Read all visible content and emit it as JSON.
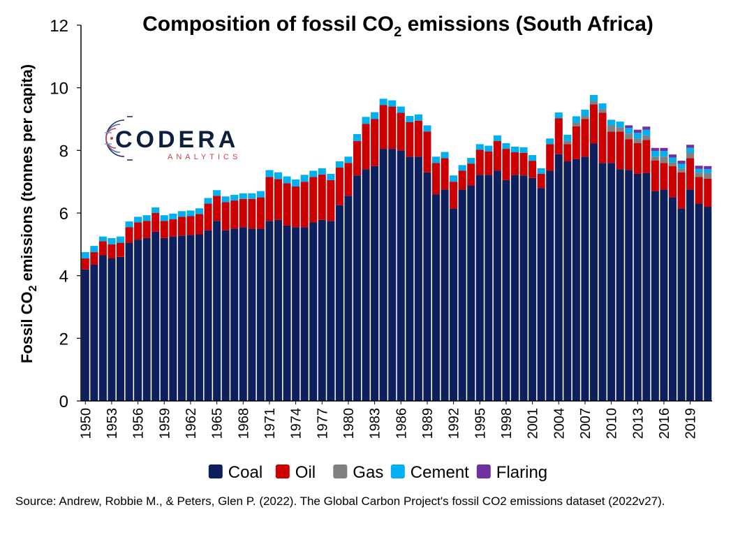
{
  "colors": {
    "Coal": "#0d1f5c",
    "Oil": "#cc0000",
    "Gas": "#808080",
    "Cement": "#00b0f0",
    "Flaring": "#7030a0"
  },
  "logo": {
    "name": "CODERA",
    "sub": "ANALYTICS"
  },
  "source": "Source: Andrew, Robbie M., & Peters, Glen P. (2022). The Global Carbon Project's fossil CO2 emissions dataset (2022v27).",
  "chart_data": {
    "type": "bar",
    "stacked": true,
    "title": {
      "pre": "Composition of fossil CO",
      "sub": "2",
      "post": " emissions (South Africa)"
    },
    "ylabel": {
      "pre": "Fossil CO",
      "sub": "2",
      "post": " emissions (tonnes  per capita)"
    },
    "xlabel": "",
    "ylim": [
      0,
      12
    ],
    "yticks": [
      0,
      2,
      4,
      6,
      8,
      10,
      12
    ],
    "grid": false,
    "legend_position": "bottom",
    "xtick_labels": [
      "1950",
      "1953",
      "1956",
      "1959",
      "1962",
      "1965",
      "1968",
      "1971",
      "1974",
      "1977",
      "1980",
      "1983",
      "1986",
      "1989",
      "1992",
      "1995",
      "1998",
      "2001",
      "2004",
      "2007",
      "2010",
      "2013",
      "2016",
      "2019"
    ],
    "categories": [
      "1950",
      "1951",
      "1952",
      "1953",
      "1954",
      "1955",
      "1956",
      "1957",
      "1958",
      "1959",
      "1960",
      "1961",
      "1962",
      "1963",
      "1964",
      "1965",
      "1966",
      "1967",
      "1968",
      "1969",
      "1970",
      "1971",
      "1972",
      "1973",
      "1974",
      "1975",
      "1976",
      "1977",
      "1978",
      "1979",
      "1980",
      "1981",
      "1982",
      "1983",
      "1984",
      "1985",
      "1986",
      "1987",
      "1988",
      "1989",
      "1990",
      "1991",
      "1992",
      "1993",
      "1994",
      "1995",
      "1996",
      "1997",
      "1998",
      "1999",
      "2000",
      "2001",
      "2002",
      "2003",
      "2004",
      "2005",
      "2006",
      "2007",
      "2008",
      "2009",
      "2010",
      "2011",
      "2012",
      "2013",
      "2014",
      "2015",
      "2016",
      "2017",
      "2018",
      "2019",
      "2020",
      "2021"
    ],
    "series": [
      {
        "name": "Coal",
        "values": [
          4.2,
          4.35,
          4.65,
          4.55,
          4.6,
          5.05,
          5.15,
          5.2,
          5.4,
          5.2,
          5.25,
          5.28,
          5.3,
          5.32,
          5.45,
          5.75,
          5.45,
          5.5,
          5.55,
          5.5,
          5.5,
          5.75,
          5.78,
          5.6,
          5.55,
          5.55,
          5.7,
          5.78,
          5.75,
          6.25,
          6.55,
          7.2,
          7.4,
          7.5,
          8.05,
          8.05,
          8.0,
          7.8,
          7.8,
          7.3,
          6.6,
          6.75,
          6.15,
          6.75,
          6.88,
          7.22,
          7.22,
          7.35,
          7.05,
          7.22,
          7.2,
          7.12,
          6.8,
          7.35,
          7.88,
          7.65,
          7.72,
          7.8,
          8.22,
          7.6,
          7.6,
          7.4,
          7.38,
          7.25,
          7.28,
          6.7,
          6.75,
          6.5,
          6.15,
          6.75,
          6.3,
          6.2
        ]
      },
      {
        "name": "Oil",
        "values": [
          0.35,
          0.4,
          0.45,
          0.45,
          0.45,
          0.5,
          0.55,
          0.55,
          0.6,
          0.55,
          0.55,
          0.6,
          0.6,
          0.65,
          0.85,
          0.8,
          0.9,
          0.9,
          0.9,
          0.95,
          1.0,
          1.4,
          1.3,
          1.35,
          1.3,
          1.45,
          1.45,
          1.45,
          1.3,
          1.2,
          1.05,
          1.1,
          1.45,
          1.5,
          1.4,
          1.35,
          1.2,
          1.1,
          1.15,
          1.3,
          1.0,
          1.0,
          0.85,
          0.6,
          0.7,
          0.8,
          0.75,
          0.95,
          1.0,
          0.72,
          0.72,
          0.55,
          0.45,
          0.85,
          1.15,
          0.55,
          1.05,
          1.2,
          1.25,
          1.6,
          1.0,
          1.2,
          0.98,
          0.98,
          1.05,
          0.98,
          0.85,
          1.0,
          1.15,
          1.0,
          0.85,
          0.9
        ]
      },
      {
        "name": "Gas",
        "values": [
          0,
          0,
          0,
          0,
          0,
          0,
          0,
          0,
          0,
          0,
          0,
          0,
          0,
          0,
          0,
          0,
          0,
          0,
          0,
          0,
          0,
          0,
          0,
          0,
          0,
          0,
          0,
          0,
          0,
          0,
          0,
          0,
          0,
          0,
          0,
          0,
          0,
          0,
          0,
          0,
          0,
          0,
          0,
          0,
          0,
          0,
          0,
          0,
          0,
          0,
          0,
          0,
          0,
          0,
          0,
          0.1,
          0.12,
          0.1,
          0.1,
          0.12,
          0.2,
          0.14,
          0.18,
          0.15,
          0.15,
          0.12,
          0.2,
          0.12,
          0.12,
          0.18,
          0.14,
          0.18
        ]
      },
      {
        "name": "Cement",
        "values": [
          0.2,
          0.2,
          0.15,
          0.2,
          0.2,
          0.18,
          0.18,
          0.18,
          0.18,
          0.18,
          0.18,
          0.18,
          0.18,
          0.18,
          0.18,
          0.18,
          0.18,
          0.18,
          0.18,
          0.18,
          0.2,
          0.22,
          0.22,
          0.22,
          0.22,
          0.22,
          0.2,
          0.2,
          0.2,
          0.2,
          0.2,
          0.22,
          0.22,
          0.22,
          0.2,
          0.2,
          0.2,
          0.2,
          0.2,
          0.2,
          0.2,
          0.2,
          0.2,
          0.18,
          0.18,
          0.18,
          0.18,
          0.18,
          0.18,
          0.18,
          0.18,
          0.18,
          0.18,
          0.18,
          0.18,
          0.2,
          0.2,
          0.2,
          0.2,
          0.18,
          0.18,
          0.18,
          0.18,
          0.18,
          0.18,
          0.18,
          0.18,
          0.15,
          0.15,
          0.15,
          0.12,
          0.12
        ]
      },
      {
        "name": "Flaring",
        "values": [
          0,
          0,
          0,
          0,
          0,
          0,
          0,
          0,
          0,
          0,
          0,
          0,
          0,
          0,
          0,
          0,
          0,
          0,
          0,
          0,
          0,
          0,
          0,
          0,
          0,
          0,
          0,
          0,
          0,
          0,
          0,
          0,
          0,
          0,
          0,
          0,
          0,
          0,
          0,
          0,
          0,
          0,
          0,
          0,
          0,
          0,
          0,
          0,
          0,
          0,
          0,
          0,
          0,
          0,
          0,
          0,
          0,
          0,
          0,
          0,
          0,
          0,
          0.08,
          0.1,
          0.1,
          0.1,
          0.1,
          0.1,
          0.1,
          0.1,
          0.1,
          0.1
        ]
      }
    ]
  }
}
